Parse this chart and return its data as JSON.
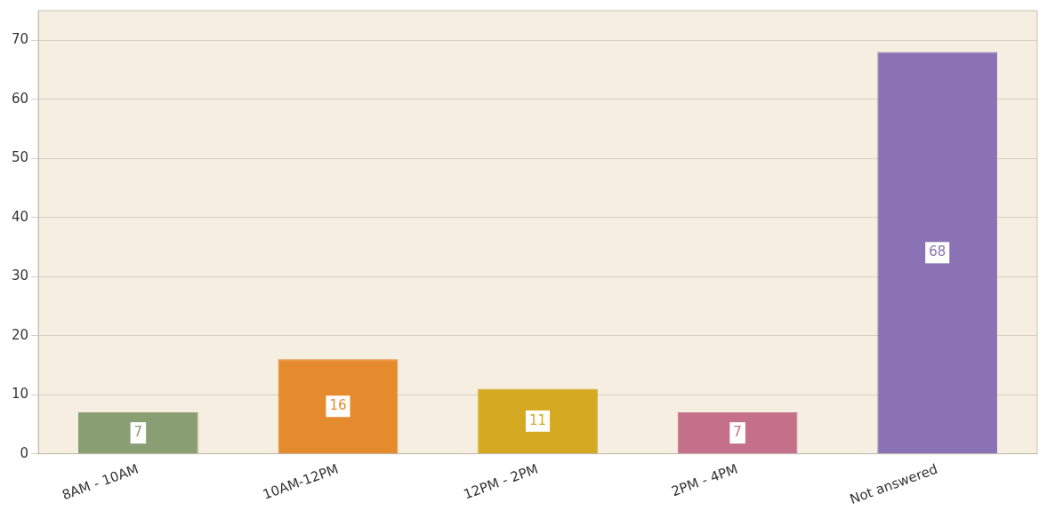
{
  "chart_data": {
    "type": "bar",
    "categories": [
      "8AM - 10AM",
      "10AM-12PM",
      "12PM - 2PM",
      "2PM - 4PM",
      "Not answered"
    ],
    "values": [
      7,
      16,
      11,
      7,
      68
    ],
    "colors": [
      "#8a9e74",
      "#e68a2e",
      "#d4a820",
      "#c4708a",
      "#8a72b4"
    ],
    "ylim": [
      0,
      75
    ],
    "yticks": [
      0,
      10,
      20,
      30,
      40,
      50,
      60,
      70
    ],
    "grid": "y",
    "legend": false,
    "data_labels": true
  }
}
